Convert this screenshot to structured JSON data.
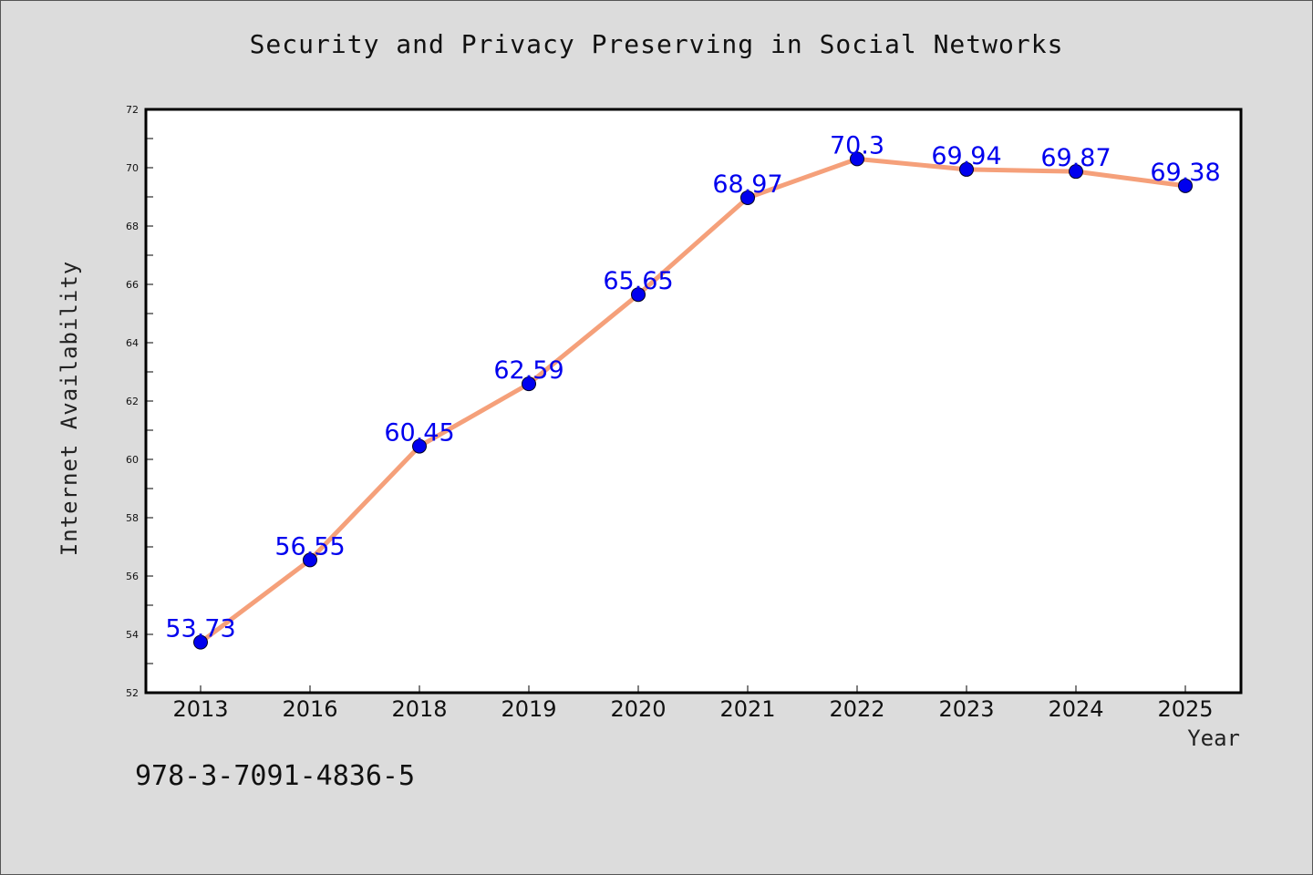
{
  "chart_data": {
    "type": "line",
    "title": "Security and Privacy Preserving in Social Networks",
    "xlabel": "Year",
    "ylabel": "Internet Availability",
    "categories": [
      "2013",
      "2016",
      "2018",
      "2019",
      "2020",
      "2021",
      "2022",
      "2023",
      "2024",
      "2025"
    ],
    "series": [
      {
        "values": [
          53.73,
          56.55,
          60.45,
          62.59,
          65.65,
          68.97,
          70.3,
          69.94,
          69.87,
          69.38
        ]
      }
    ],
    "data_labels": [
      "53.73",
      "56.55",
      "60.45",
      "62.59",
      "65.65",
      "68.97",
      "70.3",
      "69.94",
      "69.87",
      "69.38"
    ],
    "ylim": [
      52,
      72
    ],
    "yticks": [
      "52",
      "54",
      "56",
      "58",
      "60",
      "62",
      "64",
      "66",
      "68",
      "70",
      "72"
    ],
    "grid": false,
    "legend": "none",
    "line_color": "#f5a07a",
    "marker_color": "#0000ee",
    "label_color": "#0000ee"
  },
  "footnote": "978-3-7091-4836-5"
}
